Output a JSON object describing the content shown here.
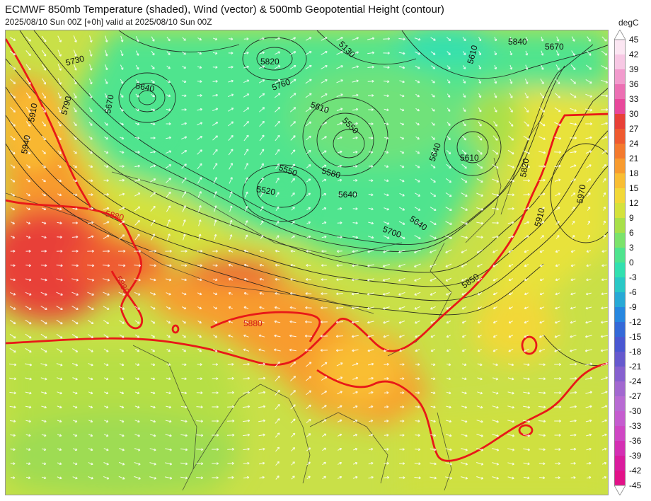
{
  "header": {
    "title": "ECMWF 850mb Temperature (shaded), Wind (vector) & 500mb Geopotential Height (contour)",
    "subtitle": "2025/08/10 Sun 00Z [+0h] valid at 2025/08/10 Sun 00Z"
  },
  "colorbar": {
    "unit": "degC",
    "ticks": [
      "45",
      "42",
      "39",
      "36",
      "33",
      "30",
      "27",
      "24",
      "21",
      "18",
      "15",
      "12",
      "9",
      "6",
      "3",
      "0",
      "-3",
      "-6",
      "-9",
      "-12",
      "-15",
      "-18",
      "-21",
      "-24",
      "-27",
      "-30",
      "-33",
      "-36",
      "-39",
      "-42",
      "-45"
    ],
    "colors": [
      "#fbe6f2",
      "#f7c8e4",
      "#f29bcd",
      "#ec6fb3",
      "#e8489b",
      "#e84038",
      "#ef5a30",
      "#f47a2e",
      "#f89b2f",
      "#f9be33",
      "#f2d838",
      "#d4e23c",
      "#a8e04a",
      "#7be36b",
      "#4fe48e",
      "#32e0b0",
      "#2ac8c6",
      "#28a9d6",
      "#2787e0",
      "#3469d8",
      "#4a57d2",
      "#6659ce",
      "#8660cf",
      "#a268d0",
      "#b86bd3",
      "#c55ccf",
      "#cf47c4",
      "#d42fb3",
      "#da1c9e",
      "#e21288"
    ]
  },
  "map": {
    "contour_labels_black": [
      "5730",
      "5790",
      "5910",
      "5940",
      "5670",
      "5640",
      "5820",
      "5760",
      "5610",
      "5550",
      "5580",
      "5520",
      "5550",
      "5640",
      "5700",
      "5640",
      "5640",
      "5610",
      "5840",
      "5670",
      "5610",
      "5820",
      "5910",
      "5970",
      "5850",
      "5130"
    ],
    "contour_labels_red": [
      "5880",
      "5880",
      "5880"
    ],
    "colors": {
      "line_588": "#e81818",
      "contour": "#1c1c1c",
      "coast": "#2a2a2a",
      "wind": "#ffffff"
    }
  }
}
